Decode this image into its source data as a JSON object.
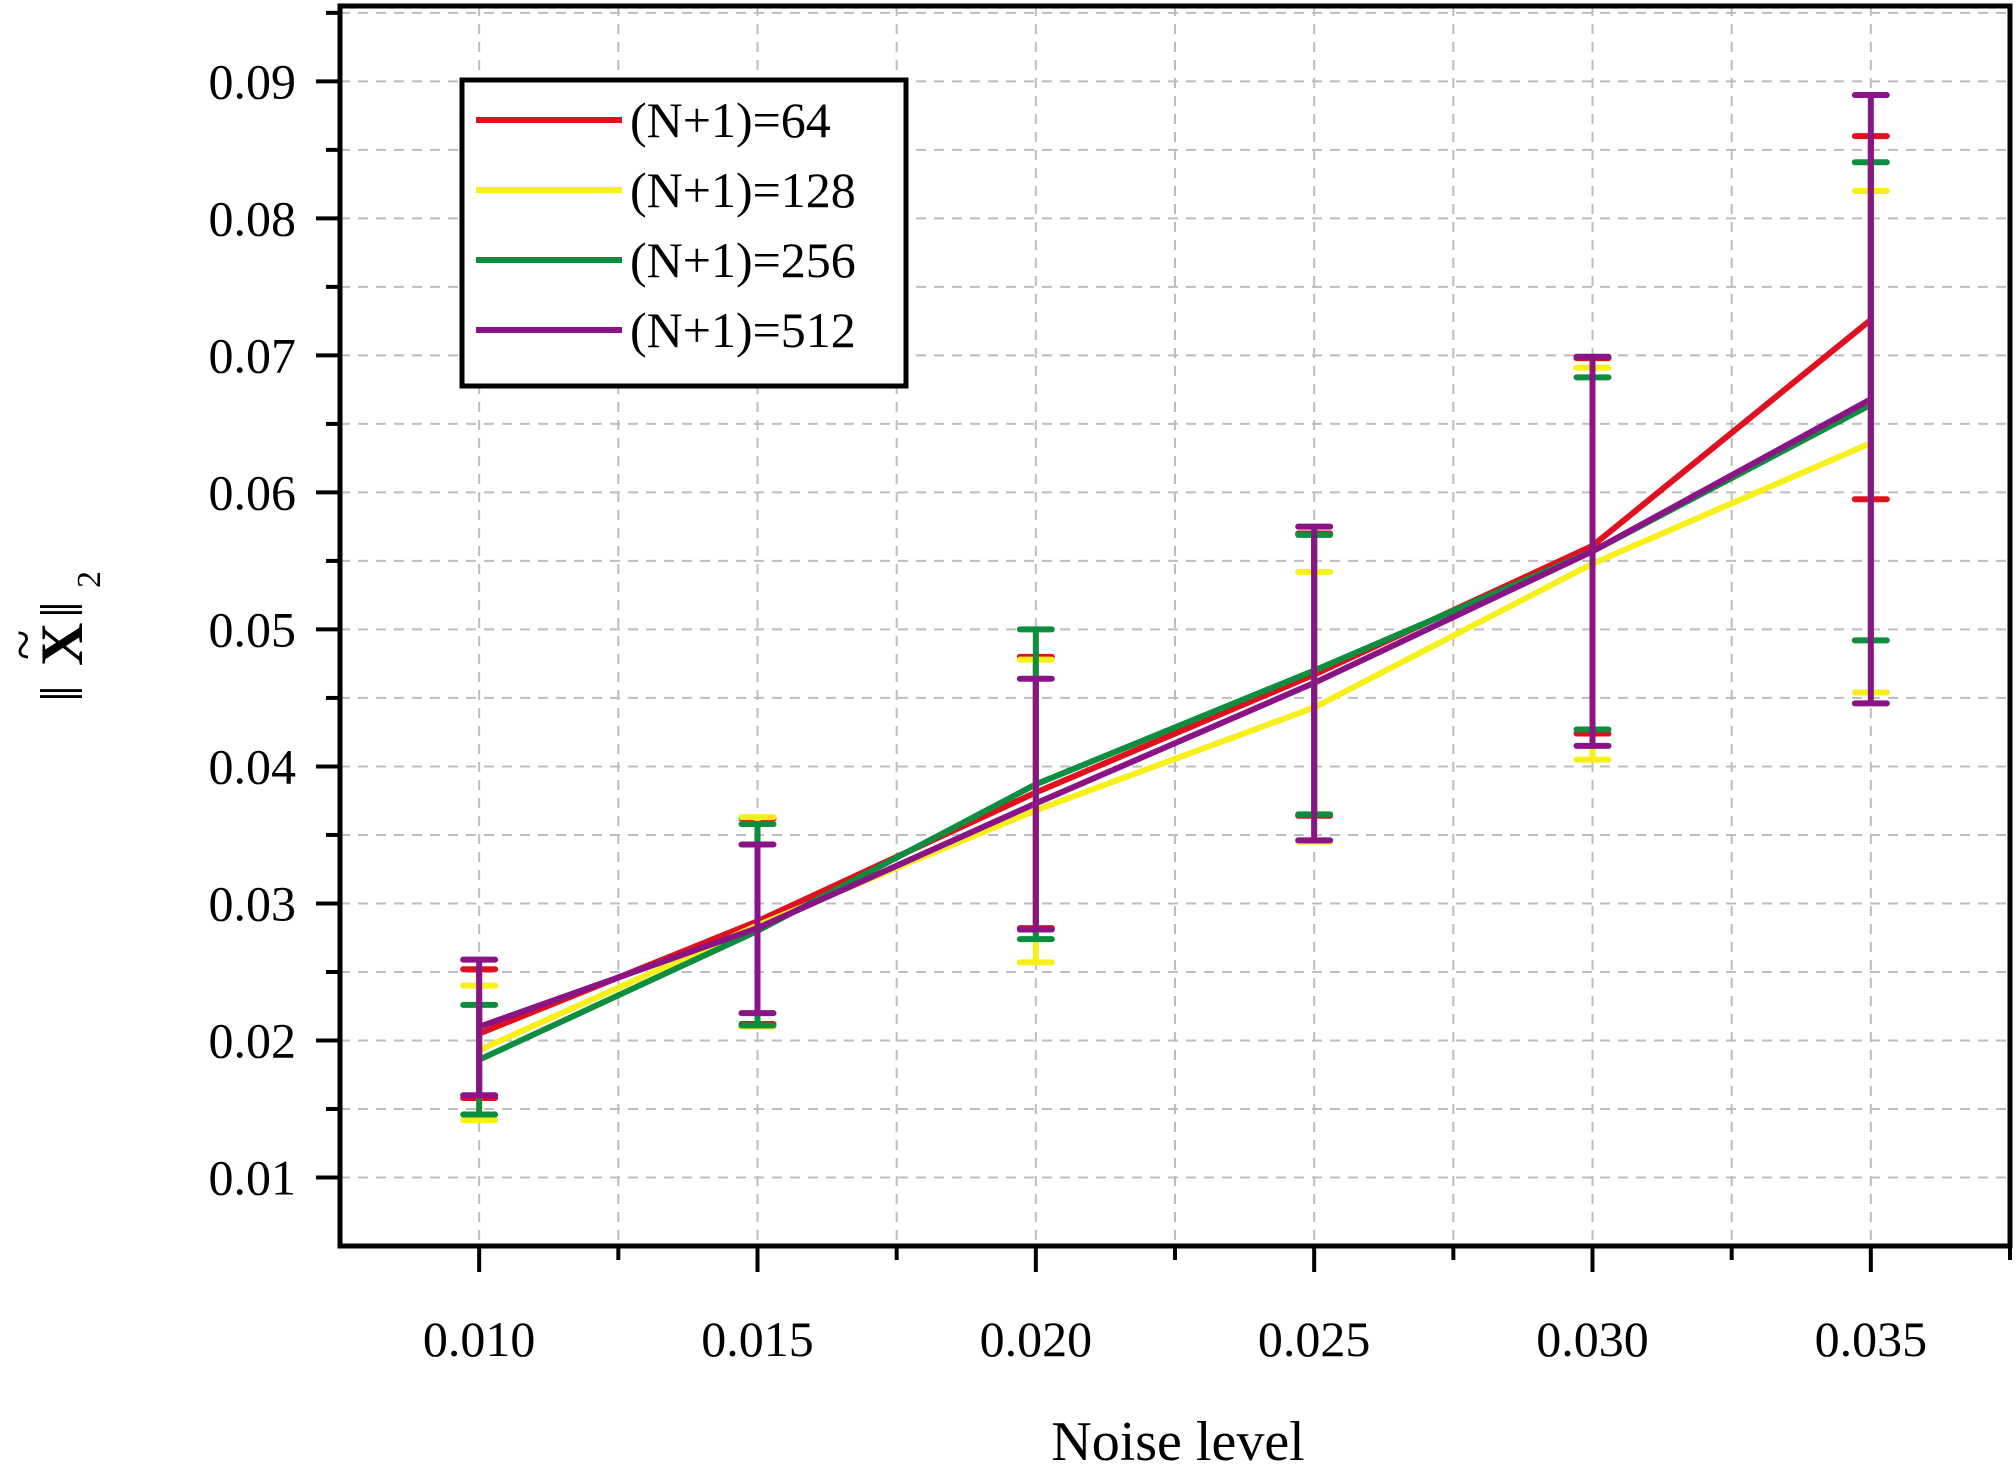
{
  "chart_data": {
    "type": "line",
    "xlabel": "Noise level",
    "ylabel": "||X̃||₂",
    "x": [
      0.01,
      0.015,
      0.02,
      0.025,
      0.03,
      0.035
    ],
    "x_tick_labels": [
      "0.010",
      "0.015",
      "0.020",
      "0.025",
      "0.030",
      "0.035"
    ],
    "y_tick_labels": [
      "0.01",
      "0.02",
      "0.03",
      "0.04",
      "0.05",
      "0.06",
      "0.07",
      "0.08",
      "0.09"
    ],
    "y_ticks": [
      0.01,
      0.02,
      0.03,
      0.04,
      0.05,
      0.06,
      0.07,
      0.08,
      0.09
    ],
    "xlim": [
      0.0075,
      0.0375
    ],
    "ylim": [
      0.005,
      0.0955
    ],
    "grid": true,
    "legend_position": "top-left",
    "error_bars": true,
    "series": [
      {
        "name": "(N+1)=64",
        "color": "#e0101e",
        "values": [
          0.0205,
          0.0287,
          0.0381,
          0.0467,
          0.0561,
          0.0726
        ],
        "upper": [
          0.0252,
          0.0362,
          0.048,
          0.057,
          0.0698,
          0.086
        ],
        "lower": [
          0.0158,
          0.0212,
          0.0282,
          0.0364,
          0.0424,
          0.0595
        ]
      },
      {
        "name": "(N+1)=128",
        "color": "#f7ef1a",
        "values": [
          0.0193,
          0.0284,
          0.0368,
          0.0443,
          0.0548,
          0.0636
        ],
        "upper": [
          0.024,
          0.0363,
          0.0478,
          0.0542,
          0.0691,
          0.082
        ],
        "lower": [
          0.0142,
          0.021,
          0.0257,
          0.0345,
          0.0405,
          0.0454
        ]
      },
      {
        "name": "(N+1)=256",
        "color": "#0c8e3e",
        "values": [
          0.0186,
          0.028,
          0.0387,
          0.047,
          0.0557,
          0.0664
        ],
        "upper": [
          0.0226,
          0.0358,
          0.05,
          0.0569,
          0.0684,
          0.0841
        ],
        "lower": [
          0.0146,
          0.0211,
          0.0274,
          0.0365,
          0.0427,
          0.0492
        ]
      },
      {
        "name": "(N+1)=512",
        "color": "#8a1485",
        "values": [
          0.021,
          0.0282,
          0.0373,
          0.0461,
          0.0557,
          0.0668
        ],
        "upper": [
          0.0259,
          0.0343,
          0.0464,
          0.0575,
          0.0699,
          0.089
        ],
        "lower": [
          0.016,
          0.022,
          0.0281,
          0.0346,
          0.0415,
          0.0446
        ]
      }
    ]
  }
}
